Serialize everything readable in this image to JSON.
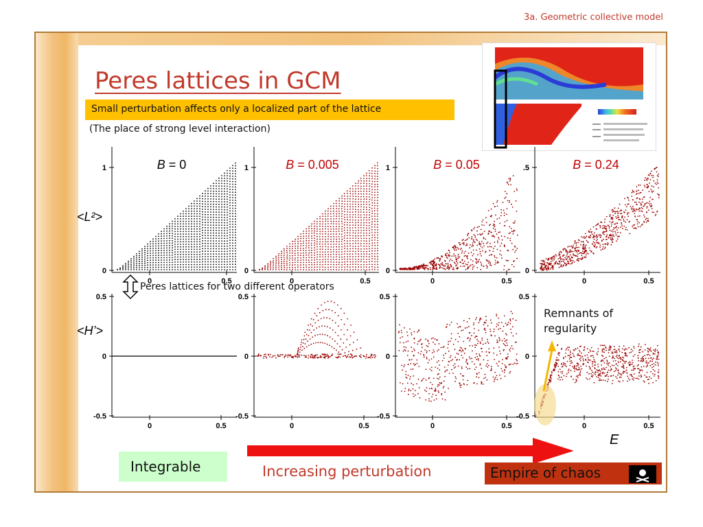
{
  "header": {
    "section": "3a. Geometric collective model"
  },
  "title": "Peres lattices in GCM",
  "highlight": "Small perturbation affects only a localized part of the lattice",
  "note": "(The place of strong level interaction)",
  "operators_note": "Peres lattices for two different operators",
  "y_labels": {
    "l2": "<L²>",
    "h": "<H’>"
  },
  "x_label": "E",
  "panels": [
    {
      "label_var": "B",
      "label_val": "= 0",
      "color": "#000000"
    },
    {
      "label_var": "B",
      "label_val": "= 0.005",
      "color": "#c00000"
    },
    {
      "label_var": "B",
      "label_val": "= 0.05",
      "color": "#c00000"
    },
    {
      "label_var": "B",
      "label_val": "= 0.24",
      "color": "#c00000"
    }
  ],
  "chart_data": [
    {
      "type": "scatter",
      "name": "L2 B=0",
      "xticks": [
        "0",
        "0.5"
      ],
      "yticks": [
        "1",
        "0"
      ]
    },
    {
      "type": "scatter",
      "name": "L2 B=0.005",
      "xticks": [
        "0",
        "0.5"
      ],
      "yticks": [
        "1",
        "0"
      ]
    },
    {
      "type": "scatter",
      "name": "L2 B=0.05",
      "xticks": [
        "0",
        "0.5"
      ],
      "yticks": [
        "1",
        "0"
      ]
    },
    {
      "type": "scatter",
      "name": "L2 B=0.24",
      "xticks": [
        "0",
        "0.5"
      ],
      "yticks": [
        ".5",
        "0"
      ]
    },
    {
      "type": "scatter",
      "name": "H B=0",
      "xticks": [
        "0",
        "0.5"
      ],
      "yticks": [
        "0.5",
        "0",
        "-0.5"
      ]
    },
    {
      "type": "scatter",
      "name": "H B=0.005",
      "xticks": [
        "0",
        "0.5"
      ],
      "yticks": [
        "0.5",
        "0",
        "-0.5"
      ]
    },
    {
      "type": "scatter",
      "name": "H B=0.05",
      "xticks": [
        "0",
        "0.5"
      ],
      "yticks": [
        "0.5",
        "0",
        "-0.5"
      ]
    },
    {
      "type": "scatter",
      "name": "H B=0.24",
      "xticks": [
        "0",
        "0.5"
      ],
      "yticks": [
        "0.5",
        "0",
        "-0.5"
      ]
    }
  ],
  "annotations": {
    "remnants": "Remnants of regularity"
  },
  "footer": {
    "integrable": "Integrable",
    "increasing": "Increasing perturbation",
    "chaos": "Empire of chaos"
  },
  "colors": {
    "accent": "#c0392b",
    "highlight": "#ffc000",
    "integrable_bg": "#ccffcc",
    "chaos_bg": "#c0320f",
    "arrow": "#ee1111",
    "dots": "#9b0000"
  }
}
